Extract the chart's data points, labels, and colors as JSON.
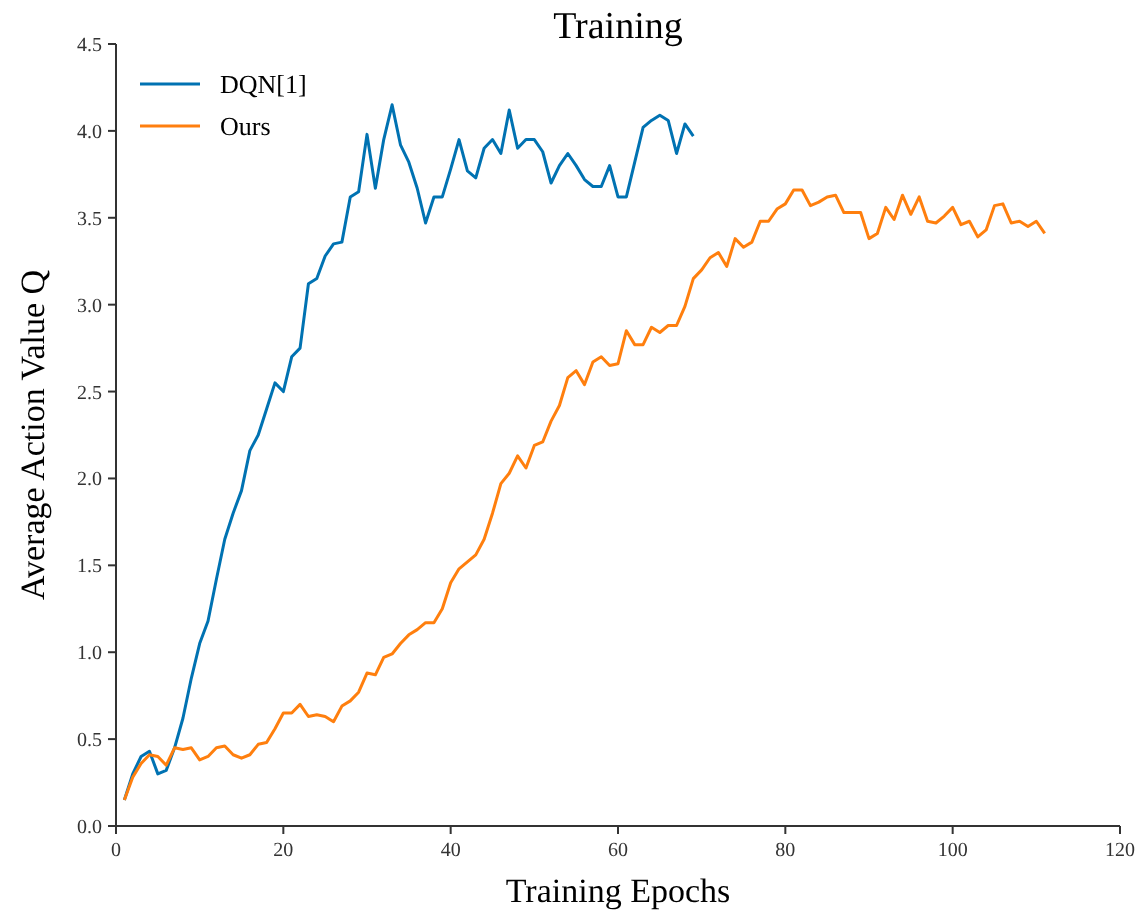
{
  "chart_data": {
    "type": "line",
    "title": "Training",
    "xlabel": "Training Epochs",
    "ylabel": "Average Action Value Q",
    "x": [
      1,
      2,
      3,
      4,
      5,
      6,
      7,
      8,
      9,
      10,
      11,
      12,
      13,
      14,
      15,
      16,
      17,
      18,
      19,
      20,
      21,
      22,
      23,
      24,
      25,
      26,
      27,
      28,
      29,
      30,
      31,
      32,
      33,
      34,
      35,
      36,
      37,
      38,
      39,
      40,
      41,
      42,
      43,
      44,
      45,
      46,
      47,
      48,
      49,
      50,
      51,
      52,
      53,
      54,
      55,
      56,
      57,
      58,
      59,
      60,
      61,
      62,
      63,
      64,
      65,
      66,
      67,
      68,
      69,
      70,
      71,
      72,
      73,
      74,
      75,
      76,
      77,
      78,
      79,
      80,
      81,
      82,
      83,
      84,
      85,
      86,
      87,
      88,
      89,
      90,
      91,
      92,
      93,
      94,
      95,
      96,
      97,
      98,
      99,
      100,
      101,
      102,
      103,
      104,
      105,
      106,
      107,
      108,
      109,
      110,
      111
    ],
    "series": [
      {
        "name": "DQN[1]",
        "color": "#0072b2",
        "values": [
          0.15,
          0.3,
          0.4,
          0.43,
          0.3,
          0.32,
          0.45,
          0.62,
          0.85,
          1.05,
          1.18,
          1.42,
          1.65,
          1.8,
          1.93,
          2.16,
          2.25,
          2.4,
          2.55,
          2.5,
          2.7,
          2.75,
          3.12,
          3.15,
          3.28,
          3.35,
          3.36,
          3.62,
          3.65,
          3.98,
          3.67,
          3.95,
          4.15,
          3.92,
          3.82,
          3.67,
          3.47,
          3.62,
          3.62,
          3.78,
          3.95,
          3.77,
          3.73,
          3.9,
          3.95,
          3.87,
          4.12,
          3.9,
          3.95,
          3.95,
          3.88,
          3.7,
          3.8,
          3.87,
          3.8,
          3.72,
          3.68,
          3.68,
          3.8,
          3.62,
          3.62,
          3.82,
          4.02,
          4.06,
          4.09,
          4.06,
          3.87,
          4.04,
          3.97,
          null,
          null,
          null,
          null,
          null,
          null,
          null,
          null,
          null,
          null,
          null,
          null,
          null,
          null,
          null,
          null,
          null,
          null,
          null,
          null,
          null,
          null,
          null,
          null,
          null,
          null,
          null,
          null,
          null,
          null,
          null,
          null,
          null,
          null,
          null,
          null,
          null,
          null,
          null,
          null,
          null,
          null
        ]
      },
      {
        "name": "Ours",
        "color": "#ff7f0e",
        "values": [
          0.15,
          0.28,
          0.36,
          0.41,
          0.4,
          0.35,
          0.45,
          0.44,
          0.45,
          0.38,
          0.4,
          0.45,
          0.46,
          0.41,
          0.39,
          0.41,
          0.47,
          0.48,
          0.56,
          0.65,
          0.65,
          0.7,
          0.63,
          0.64,
          0.63,
          0.6,
          0.69,
          0.72,
          0.77,
          0.88,
          0.87,
          0.97,
          0.99,
          1.05,
          1.1,
          1.13,
          1.17,
          1.17,
          1.25,
          1.4,
          1.48,
          1.52,
          1.56,
          1.65,
          1.8,
          1.97,
          2.03,
          2.13,
          2.06,
          2.19,
          2.21,
          2.33,
          2.42,
          2.58,
          2.62,
          2.54,
          2.67,
          2.7,
          2.65,
          2.66,
          2.85,
          2.77,
          2.77,
          2.87,
          2.84,
          2.88,
          2.88,
          2.99,
          3.15,
          3.2,
          3.27,
          3.3,
          3.22,
          3.38,
          3.33,
          3.36,
          3.48,
          3.48,
          3.55,
          3.58,
          3.66,
          3.66,
          3.57,
          3.59,
          3.62,
          3.63,
          3.53,
          3.53,
          3.53,
          3.38,
          3.41,
          3.56,
          3.49,
          3.63,
          3.52,
          3.62,
          3.48,
          3.47,
          3.51,
          3.56,
          3.46,
          3.48,
          3.39,
          3.43,
          3.57,
          3.58,
          3.47,
          3.48,
          3.45,
          3.48,
          3.41
        ]
      }
    ],
    "xlim": [
      0,
      120
    ],
    "xticks": [
      0,
      20,
      40,
      60,
      80,
      100,
      120
    ],
    "ylim": [
      0,
      4.5
    ],
    "yticks": [
      {
        "value": 0,
        "label": "0.0"
      },
      {
        "value": 0.5,
        "label": "0.5"
      },
      {
        "value": 1,
        "label": "1.0"
      },
      {
        "value": 1.5,
        "label": "1.5"
      },
      {
        "value": 2,
        "label": "2.0"
      },
      {
        "value": 2.5,
        "label": "2.5"
      },
      {
        "value": 3,
        "label": "3.0"
      },
      {
        "value": 3.5,
        "label": "3.5"
      },
      {
        "value": 4,
        "label": "4.0"
      },
      {
        "value": 4.5,
        "label": "4.5"
      }
    ],
    "legend": "top left"
  }
}
